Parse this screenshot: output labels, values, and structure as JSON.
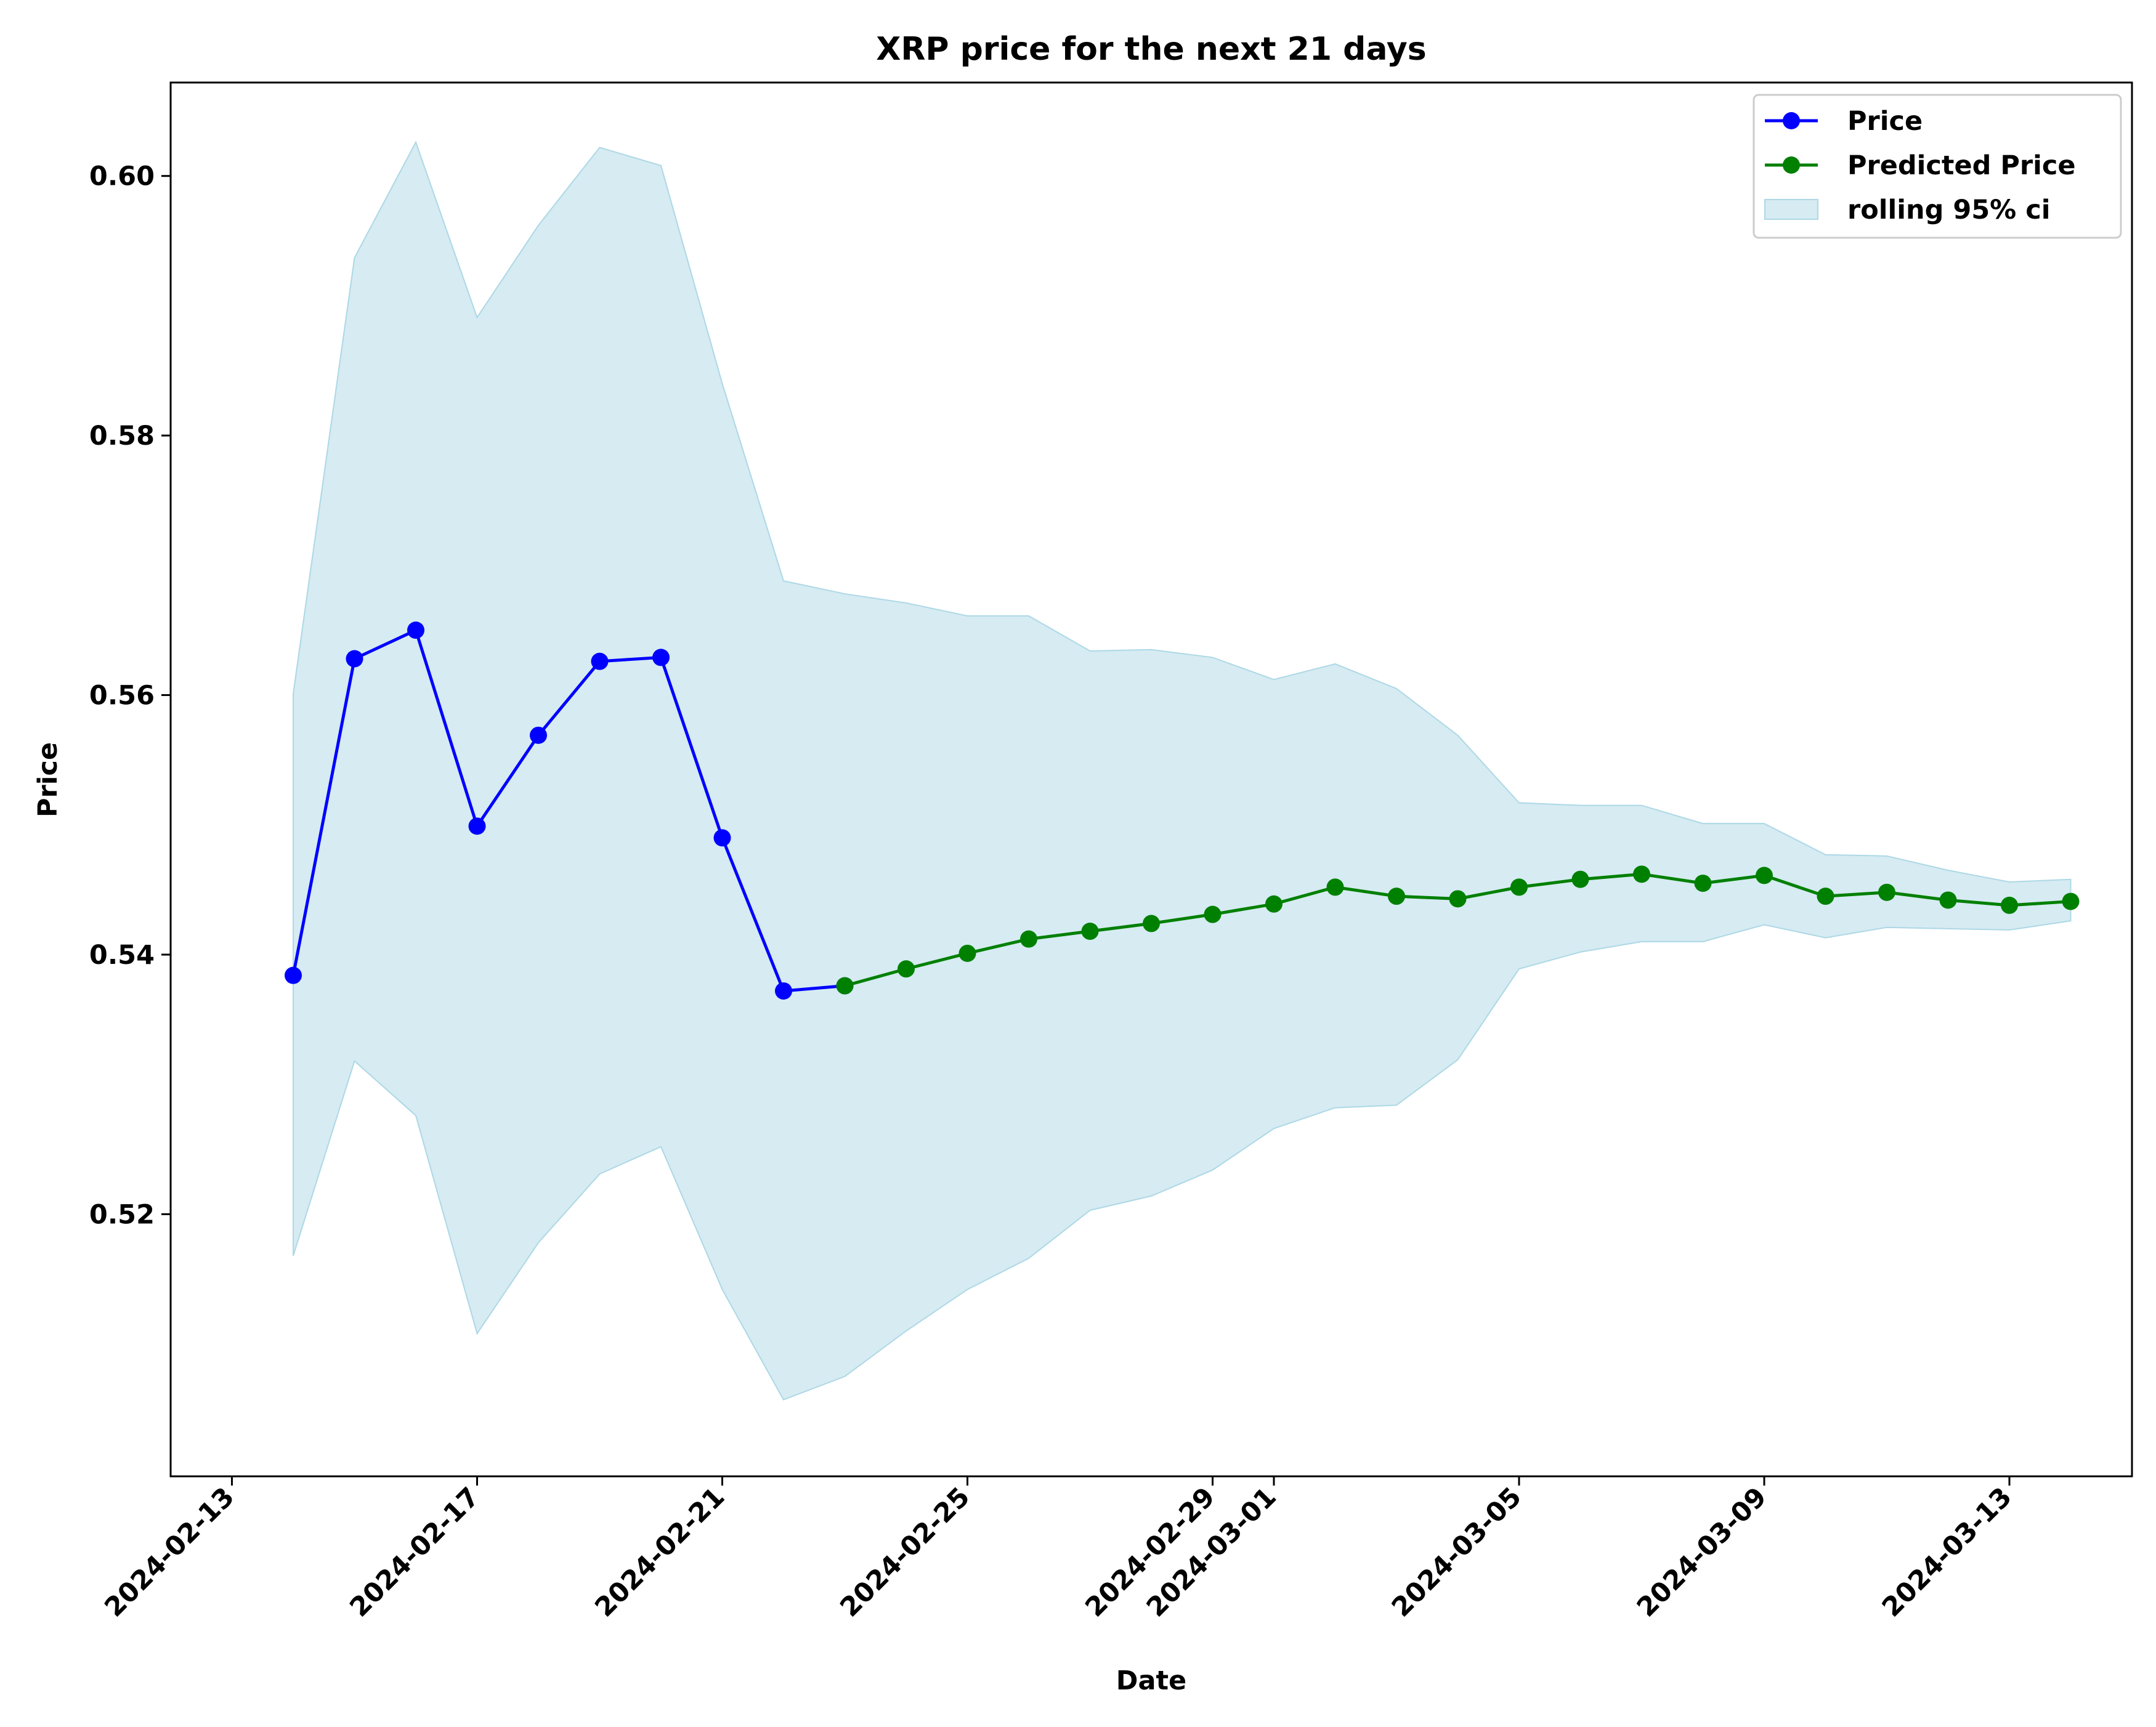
{
  "chart_data": {
    "type": "line",
    "title": "XRP price for the next 21 days",
    "xlabel": "Date",
    "ylabel": "Price",
    "x_axis": {
      "type": "date",
      "range": [
        "2024-02-12",
        "2024-03-15"
      ],
      "tick_labels": [
        "2024-02-13",
        "2024-02-17",
        "2024-02-21",
        "2024-02-25",
        "2024-02-29",
        "2024-03-01",
        "2024-03-05",
        "2024-03-09",
        "2024-03-13"
      ]
    },
    "y_axis": {
      "range": [
        0.4998,
        0.6072
      ],
      "tick_labels": [
        "0.52",
        "0.54",
        "0.56",
        "0.58",
        "0.60"
      ]
    },
    "grid": false,
    "legend_placement": "top-right",
    "legend": {
      "price": "Price",
      "predicted": "Predicted Price",
      "ci": "rolling 95% ci"
    },
    "colors": {
      "price": "#0000ff",
      "predicted": "#008000",
      "ci_fill": "#add8e6"
    },
    "series": [
      {
        "name": "Price",
        "x": [
          "2024-02-14",
          "2024-02-15",
          "2024-02-16",
          "2024-02-17",
          "2024-02-18",
          "2024-02-19",
          "2024-02-20",
          "2024-02-21",
          "2024-02-22",
          "2024-02-23"
        ],
        "y": [
          0.5384,
          0.5628,
          0.565,
          0.5499,
          0.5569,
          0.5626,
          0.5629,
          0.549,
          0.5372,
          0.5376
        ]
      },
      {
        "name": "Predicted Price",
        "x": [
          "2024-02-23",
          "2024-02-24",
          "2024-02-25",
          "2024-02-26",
          "2024-02-27",
          "2024-02-28",
          "2024-02-29",
          "2024-03-01",
          "2024-03-02",
          "2024-03-03",
          "2024-03-04",
          "2024-03-05",
          "2024-03-06",
          "2024-03-07",
          "2024-03-08",
          "2024-03-09",
          "2024-03-10",
          "2024-03-11",
          "2024-03-12",
          "2024-03-13",
          "2024-03-14"
        ],
        "y": [
          0.5376,
          0.5389,
          0.5401,
          0.5412,
          0.5418,
          0.5424,
          0.5431,
          0.5439,
          0.5452,
          0.5445,
          0.5443,
          0.5452,
          0.5458,
          0.5462,
          0.5455,
          0.5461,
          0.5445,
          0.5448,
          0.5442,
          0.5438,
          0.5441
        ]
      },
      {
        "name": "rolling 95% ci",
        "type": "band",
        "x": [
          "2024-02-14",
          "2024-02-15",
          "2024-02-16",
          "2024-02-17",
          "2024-02-18",
          "2024-02-19",
          "2024-02-20",
          "2024-02-21",
          "2024-02-22",
          "2024-02-23",
          "2024-02-24",
          "2024-02-25",
          "2024-02-26",
          "2024-02-27",
          "2024-02-28",
          "2024-02-29",
          "2024-03-01",
          "2024-03-02",
          "2024-03-03",
          "2024-03-04",
          "2024-03-05",
          "2024-03-06",
          "2024-03-07",
          "2024-03-08",
          "2024-03-09",
          "2024-03-10",
          "2024-03-11",
          "2024-03-12",
          "2024-03-13",
          "2024-03-14"
        ],
        "upper": [
          0.5601,
          0.5937,
          0.6026,
          0.5891,
          0.5962,
          0.6022,
          0.6008,
          0.584,
          0.5688,
          0.5678,
          0.5671,
          0.5661,
          0.5661,
          0.5634,
          0.5635,
          0.5629,
          0.5612,
          0.5624,
          0.5605,
          0.5569,
          0.5517,
          0.5515,
          0.5515,
          0.5501,
          0.5501,
          0.5477,
          0.5476,
          0.5465,
          0.5456,
          0.5458
        ],
        "lower": [
          0.5168,
          0.5318,
          0.5276,
          0.5108,
          0.5178,
          0.5231,
          0.5252,
          0.5142,
          0.5057,
          0.5075,
          0.511,
          0.5142,
          0.5166,
          0.5203,
          0.5214,
          0.5234,
          0.5266,
          0.5282,
          0.5284,
          0.5319,
          0.5389,
          0.5402,
          0.541,
          0.541,
          0.5423,
          0.5413,
          0.5421,
          0.542,
          0.5419,
          0.5426
        ]
      }
    ]
  }
}
